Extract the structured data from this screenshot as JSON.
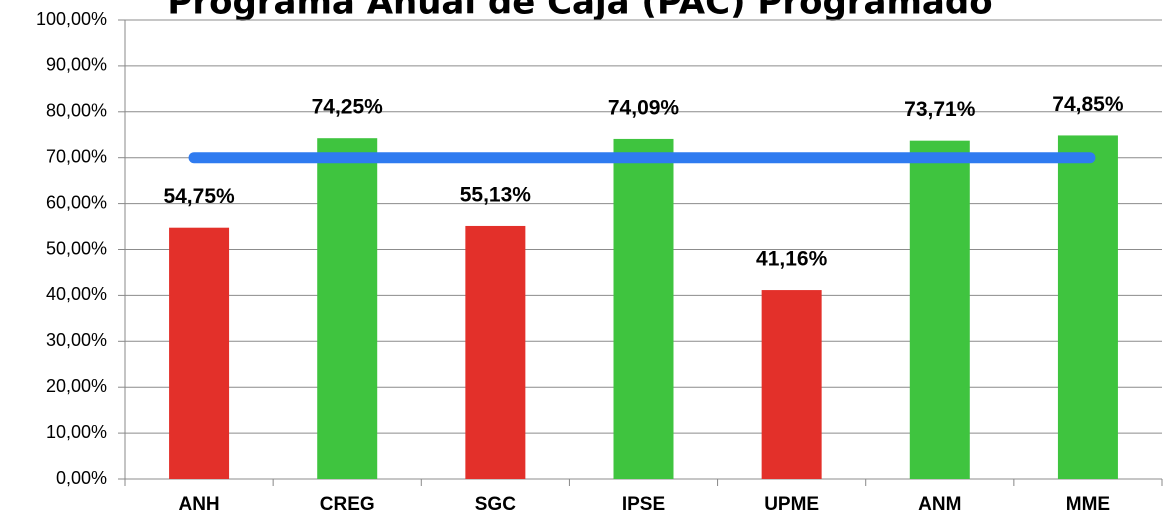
{
  "chart_data": {
    "type": "bar",
    "title": "Programa Anual de Caja (PAC) Programado",
    "categories": [
      "ANH",
      "CREG",
      "SGC",
      "IPSE",
      "UPME",
      "ANM",
      "MME"
    ],
    "values": [
      54.75,
      74.25,
      55.13,
      74.09,
      41.16,
      73.71,
      74.85
    ],
    "value_labels": [
      "54,75%",
      "74,25%",
      "55,13%",
      "74,09%",
      "41,16%",
      "73,71%",
      "74,85%"
    ],
    "colors": [
      "#e3302a",
      "#3fc43f",
      "#e3302a",
      "#3fc43f",
      "#e3302a",
      "#3fc43f",
      "#3fc43f"
    ],
    "reference_line": {
      "value": 70,
      "color": "#2f7bf0"
    },
    "ylim": [
      0,
      100
    ],
    "yticks": [
      {
        "value": 0,
        "label": "0,00%"
      },
      {
        "value": 10,
        "label": "10,00%"
      },
      {
        "value": 20,
        "label": "20,00%"
      },
      {
        "value": 30,
        "label": "30,00%"
      },
      {
        "value": 40,
        "label": "40,00%"
      },
      {
        "value": 50,
        "label": "50,00%"
      },
      {
        "value": 60,
        "label": "60,00%"
      },
      {
        "value": 70,
        "label": "70,00%"
      },
      {
        "value": 80,
        "label": "80,00%"
      },
      {
        "value": 90,
        "label": "90,00%"
      },
      {
        "value": 100,
        "label": "100,00%"
      }
    ],
    "grid": true
  }
}
